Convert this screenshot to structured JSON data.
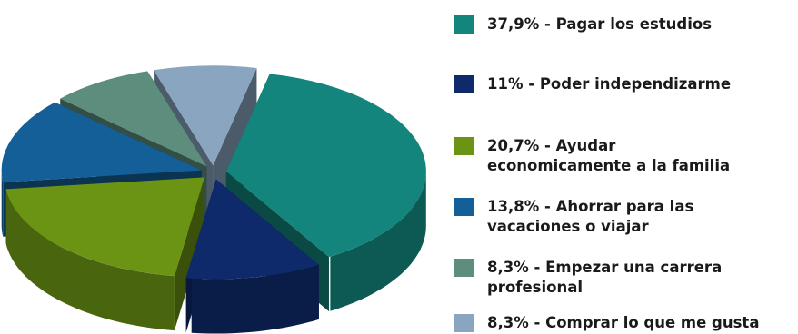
{
  "colors": {
    "background": "#ffffff",
    "text": "#1a1a1a"
  },
  "chart_data": {
    "type": "pie",
    "style": "3d-exploded",
    "title": "",
    "legend_placement": "right",
    "slices": [
      {
        "label": "37,9% - Pagar los estudios",
        "value": 37.9,
        "color": "#13857c"
      },
      {
        "label": "11% - Poder independizarme",
        "value": 11,
        "color": "#0e2a6b"
      },
      {
        "label": "20,7% - Ayudar\neconomicamente a la familia",
        "value": 20.7,
        "color": "#6c9414"
      },
      {
        "label": "13,8% - Ahorrar para las\nvacaciones o viajar",
        "value": 13.8,
        "color": "#145f97"
      },
      {
        "label": "8,3% - Empezar una carrera\nprofesional",
        "value": 8.3,
        "color": "#5d8d7d"
      },
      {
        "label": "8,3% - Comprar lo que me gusta",
        "value": 8.3,
        "color": "#8aa5c0"
      }
    ]
  }
}
